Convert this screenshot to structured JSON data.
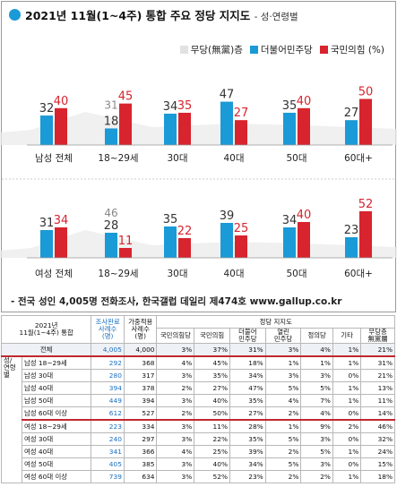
{
  "header": {
    "title": "2021년 11월(1~4주) 통합 주요 정당 지지도",
    "subtitle": "- 성·연령별"
  },
  "legend": [
    {
      "label": "무당(無黨)층",
      "color": "#e6e6e6"
    },
    {
      "label": "더불어민주당",
      "color": "#1a9ad6"
    },
    {
      "label": "국민의힘 (%)",
      "color": "#d7242e"
    }
  ],
  "colors": {
    "democratic": "#1a9ad6",
    "ppp": "#d7242e",
    "unaffiliated": "#ebebeb",
    "label_gray": "#888888"
  },
  "chart_data": [
    {
      "type": "bar",
      "title": "남성",
      "categories": [
        "남성 전체",
        "18~29세",
        "30대",
        "40대",
        "50대",
        "60대+"
      ],
      "series": [
        {
          "name": "더불어민주당",
          "values": [
            32,
            18,
            34,
            47,
            35,
            27
          ]
        },
        {
          "name": "국민의힘",
          "values": [
            40,
            45,
            35,
            27,
            40,
            50
          ]
        }
      ],
      "unaffiliated_label": {
        "category": "18~29세",
        "value": 31
      }
    },
    {
      "type": "bar",
      "title": "여성",
      "categories": [
        "여성 전체",
        "18~29세",
        "30대",
        "40대",
        "50대",
        "60대+"
      ],
      "series": [
        {
          "name": "더불어민주당",
          "values": [
            31,
            28,
            35,
            39,
            34,
            23
          ]
        },
        {
          "name": "국민의힘",
          "values": [
            34,
            11,
            22,
            25,
            40,
            52
          ]
        }
      ],
      "unaffiliated_label": {
        "category": "18~29세",
        "value": 46
      }
    }
  ],
  "footnote": "- 전국 성인 4,005명 전화조사, 한국갤럽 데일리 제474호 www.gallup.co.kr",
  "table": {
    "period_label": "2021년\n11월(1~4주) 통합",
    "col_completed": "조사완료\n사례수\n(명)",
    "col_weighted": "가중적용\n사례수\n(명)",
    "party_group": "정당 지지도",
    "party_cols": [
      "국민의힘당",
      "국민의힘",
      "더불어\n민주당",
      "열린\n민주당",
      "정의당",
      "기타",
      "무당층\n無黨層"
    ],
    "side_label": "성/\n연령별",
    "rows": [
      {
        "label": "전체",
        "n1": "4,005",
        "n2": "4,000",
        "v": [
          "3%",
          "37%",
          "31%",
          "3%",
          "4%",
          "1%",
          "21%"
        ]
      },
      {
        "label": "남성 18~29세",
        "n1": "292",
        "n2": "368",
        "v": [
          "4%",
          "45%",
          "18%",
          "1%",
          "1%",
          "1%",
          "31%"
        ]
      },
      {
        "label": "남성 30대",
        "n1": "280",
        "n2": "317",
        "v": [
          "3%",
          "35%",
          "34%",
          "3%",
          "3%",
          "0%",
          "21%"
        ]
      },
      {
        "label": "남성 40대",
        "n1": "394",
        "n2": "378",
        "v": [
          "2%",
          "27%",
          "47%",
          "5%",
          "5%",
          "1%",
          "13%"
        ]
      },
      {
        "label": "남성 50대",
        "n1": "449",
        "n2": "394",
        "v": [
          "3%",
          "40%",
          "35%",
          "4%",
          "7%",
          "1%",
          "11%"
        ]
      },
      {
        "label": "남성 60대 이상",
        "n1": "612",
        "n2": "527",
        "v": [
          "2%",
          "50%",
          "27%",
          "2%",
          "4%",
          "0%",
          "14%"
        ]
      },
      {
        "label": "여성 18~29세",
        "n1": "223",
        "n2": "334",
        "v": [
          "3%",
          "11%",
          "28%",
          "1%",
          "9%",
          "2%",
          "46%"
        ]
      },
      {
        "label": "여성 30대",
        "n1": "240",
        "n2": "297",
        "v": [
          "3%",
          "22%",
          "35%",
          "5%",
          "3%",
          "0%",
          "32%"
        ]
      },
      {
        "label": "여성 40대",
        "n1": "341",
        "n2": "366",
        "v": [
          "4%",
          "25%",
          "39%",
          "2%",
          "5%",
          "1%",
          "24%"
        ]
      },
      {
        "label": "여성 50대",
        "n1": "405",
        "n2": "385",
        "v": [
          "3%",
          "40%",
          "34%",
          "5%",
          "3%",
          "0%",
          "15%"
        ]
      },
      {
        "label": "여성 60대 이상",
        "n1": "739",
        "n2": "634",
        "v": [
          "3%",
          "52%",
          "23%",
          "2%",
          "2%",
          "1%",
          "18%"
        ]
      }
    ]
  }
}
